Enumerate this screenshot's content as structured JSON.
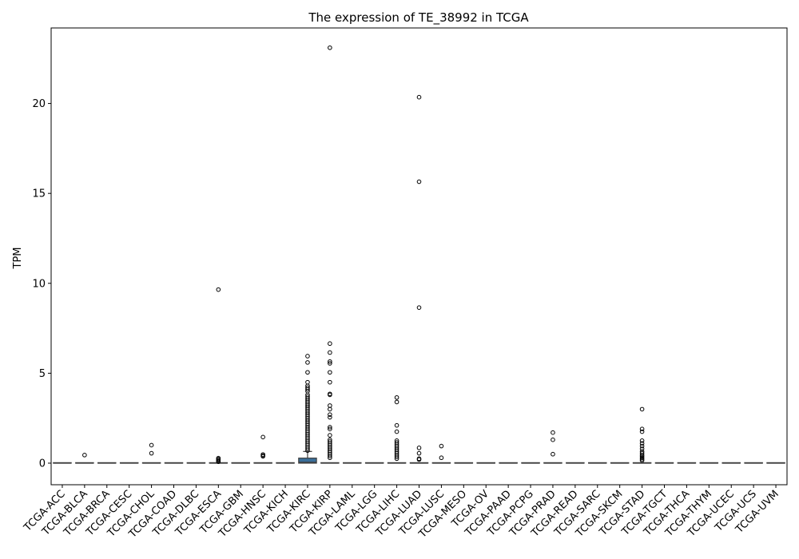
{
  "chart_data": {
    "type": "boxplot",
    "title": "The expression of TE_38992 in TCGA",
    "xlabel": "",
    "ylabel": "TPM",
    "ylim": [
      -1.2,
      24.2
    ],
    "yticks": [
      0,
      5,
      10,
      15,
      20
    ],
    "grid": false,
    "legend": "none",
    "box_color": "#3a6f9a",
    "categories": [
      "TCGA-ACC",
      "TCGA-BLCA",
      "TCGA-BRCA",
      "TCGA-CESC",
      "TCGA-CHOL",
      "TCGA-COAD",
      "TCGA-DLBC",
      "TCGA-ESCA",
      "TCGA-GBM",
      "TCGA-HNSC",
      "TCGA-KICH",
      "TCGA-KIRC",
      "TCGA-KIRP",
      "TCGA-LAML",
      "TCGA-LGG",
      "TCGA-LIHC",
      "TCGA-LUAD",
      "TCGA-LUSC",
      "TCGA-MESO",
      "TCGA-OV",
      "TCGA-PAAD",
      "TCGA-PCPG",
      "TCGA-PRAD",
      "TCGA-READ",
      "TCGA-SARC",
      "TCGA-SKCM",
      "TCGA-STAD",
      "TCGA-TGCT",
      "TCGA-THCA",
      "TCGA-THYM",
      "TCGA-UCEC",
      "TCGA-UCS",
      "TCGA-UVM"
    ],
    "boxes": [
      {
        "q1": 0,
        "median": 0,
        "q3": 0,
        "whislo": 0,
        "whishi": 0,
        "fliers": []
      },
      {
        "q1": 0,
        "median": 0,
        "q3": 0,
        "whislo": 0,
        "whishi": 0,
        "fliers": [
          0.45
        ]
      },
      {
        "q1": 0,
        "median": 0,
        "q3": 0,
        "whislo": 0,
        "whishi": 0,
        "fliers": []
      },
      {
        "q1": 0,
        "median": 0,
        "q3": 0,
        "whislo": 0,
        "whishi": 0,
        "fliers": []
      },
      {
        "q1": 0,
        "median": 0,
        "q3": 0,
        "whislo": 0,
        "whishi": 0,
        "fliers": [
          1.0,
          0.55
        ]
      },
      {
        "q1": 0,
        "median": 0,
        "q3": 0,
        "whislo": 0,
        "whishi": 0,
        "fliers": []
      },
      {
        "q1": 0,
        "median": 0,
        "q3": 0,
        "whislo": 0,
        "whishi": 0,
        "fliers": []
      },
      {
        "q1": 0,
        "median": 0,
        "q3": 0,
        "whislo": 0,
        "whishi": 0,
        "fliers": [
          9.65,
          0.28,
          0.22,
          0.18,
          0.12,
          0.08
        ]
      },
      {
        "q1": 0,
        "median": 0,
        "q3": 0,
        "whislo": 0,
        "whishi": 0,
        "fliers": []
      },
      {
        "q1": 0,
        "median": 0,
        "q3": 0,
        "whislo": 0,
        "whishi": 0,
        "fliers": [
          1.45,
          0.48,
          0.42,
          0.38
        ]
      },
      {
        "q1": 0,
        "median": 0,
        "q3": 0,
        "whislo": 0,
        "whishi": 0,
        "fliers": []
      },
      {
        "q1": 0,
        "median": 0.05,
        "q3": 0.28,
        "whislo": 0,
        "whishi": 0.65,
        "fliers": [
          5.95,
          5.6,
          5.05,
          4.5,
          4.3,
          4.2,
          4.1,
          4.0,
          3.8,
          3.7,
          3.6,
          3.5,
          3.4,
          3.3,
          3.2,
          3.1,
          3.0,
          2.9,
          2.8,
          2.7,
          2.6,
          2.5,
          2.4,
          2.3,
          2.2,
          2.1,
          2.0,
          1.9,
          1.8,
          1.7,
          1.6,
          1.5,
          1.4,
          1.3,
          1.2,
          1.1,
          1.0,
          0.9,
          0.8,
          0.7
        ]
      },
      {
        "q1": 0,
        "median": 0,
        "q3": 0,
        "whislo": 0,
        "whishi": 0,
        "fliers": [
          23.1,
          6.65,
          6.15,
          5.65,
          5.55,
          5.05,
          4.5,
          3.85,
          3.8,
          3.2,
          3.0,
          2.7,
          2.55,
          2.0,
          1.9,
          1.55,
          1.3,
          1.2,
          1.1,
          1.0,
          0.9,
          0.8,
          0.7,
          0.6,
          0.5,
          0.4,
          0.3
        ]
      },
      {
        "q1": 0,
        "median": 0,
        "q3": 0,
        "whislo": 0,
        "whishi": 0,
        "fliers": []
      },
      {
        "q1": 0,
        "median": 0,
        "q3": 0,
        "whislo": 0,
        "whishi": 0,
        "fliers": []
      },
      {
        "q1": 0,
        "median": 0,
        "q3": 0,
        "whislo": 0,
        "whishi": 0,
        "fliers": [
          3.65,
          3.4,
          2.1,
          1.75,
          1.25,
          1.15,
          1.05,
          0.95,
          0.85,
          0.75,
          0.65,
          0.55,
          0.45,
          0.35,
          0.25
        ]
      },
      {
        "q1": 0,
        "median": 0,
        "q3": 0,
        "whislo": 0,
        "whishi": 0,
        "fliers": [
          20.35,
          15.65,
          8.65,
          0.85,
          0.55,
          0.25,
          0.2
        ]
      },
      {
        "q1": 0,
        "median": 0,
        "q3": 0,
        "whislo": 0,
        "whishi": 0,
        "fliers": [
          0.95,
          0.3
        ]
      },
      {
        "q1": 0,
        "median": 0,
        "q3": 0,
        "whislo": 0,
        "whishi": 0,
        "fliers": []
      },
      {
        "q1": 0,
        "median": 0,
        "q3": 0,
        "whislo": 0,
        "whishi": 0,
        "fliers": []
      },
      {
        "q1": 0,
        "median": 0,
        "q3": 0,
        "whislo": 0,
        "whishi": 0,
        "fliers": []
      },
      {
        "q1": 0,
        "median": 0,
        "q3": 0,
        "whislo": 0,
        "whishi": 0,
        "fliers": []
      },
      {
        "q1": 0,
        "median": 0,
        "q3": 0,
        "whislo": 0,
        "whishi": 0,
        "fliers": [
          1.7,
          1.3,
          0.5
        ]
      },
      {
        "q1": 0,
        "median": 0,
        "q3": 0,
        "whislo": 0,
        "whishi": 0,
        "fliers": []
      },
      {
        "q1": 0,
        "median": 0,
        "q3": 0,
        "whislo": 0,
        "whishi": 0,
        "fliers": []
      },
      {
        "q1": 0,
        "median": 0,
        "q3": 0,
        "whislo": 0,
        "whishi": 0,
        "fliers": []
      },
      {
        "q1": 0,
        "median": 0,
        "q3": 0,
        "whislo": 0,
        "whishi": 0,
        "fliers": [
          3.0,
          1.9,
          1.75,
          1.25,
          1.1,
          0.95,
          0.8,
          0.65,
          0.55,
          0.45,
          0.38,
          0.3,
          0.22,
          0.15
        ]
      },
      {
        "q1": 0,
        "median": 0,
        "q3": 0,
        "whislo": 0,
        "whishi": 0,
        "fliers": []
      },
      {
        "q1": 0,
        "median": 0,
        "q3": 0,
        "whislo": 0,
        "whishi": 0,
        "fliers": []
      },
      {
        "q1": 0,
        "median": 0,
        "q3": 0,
        "whislo": 0,
        "whishi": 0,
        "fliers": []
      },
      {
        "q1": 0,
        "median": 0,
        "q3": 0,
        "whislo": 0,
        "whishi": 0,
        "fliers": []
      },
      {
        "q1": 0,
        "median": 0,
        "q3": 0,
        "whislo": 0,
        "whishi": 0,
        "fliers": []
      },
      {
        "q1": 0,
        "median": 0,
        "q3": 0,
        "whislo": 0,
        "whishi": 0,
        "fliers": []
      }
    ]
  }
}
